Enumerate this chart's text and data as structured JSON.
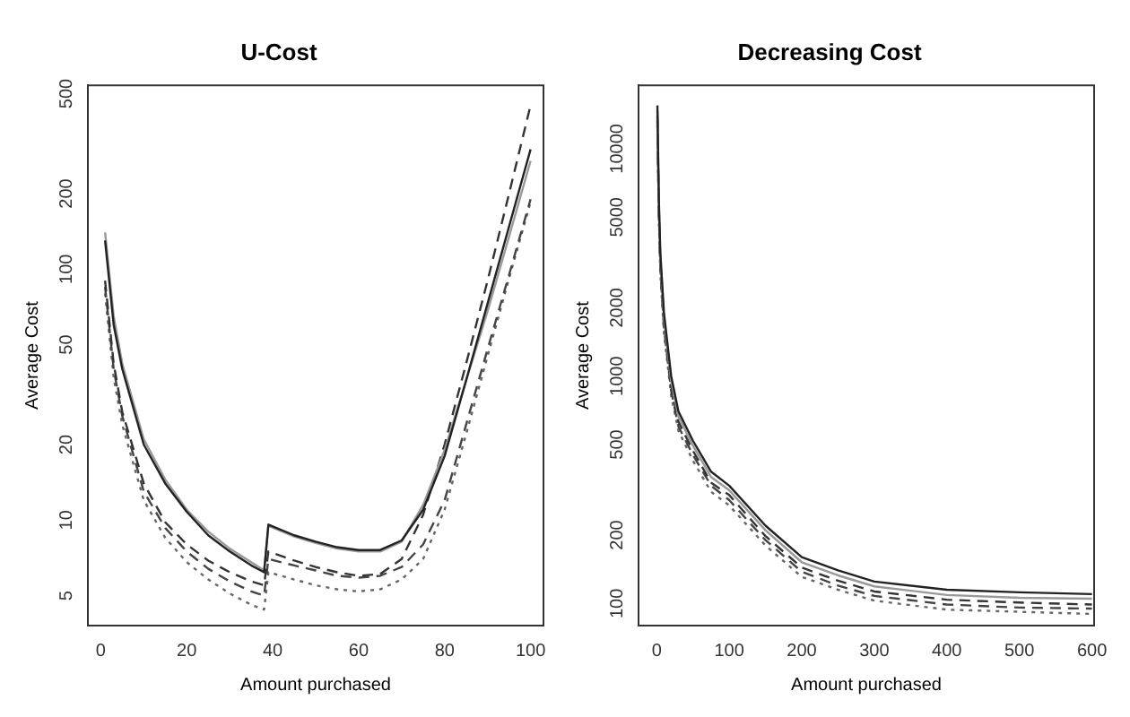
{
  "chart_data": [
    {
      "type": "line",
      "title": "U-Cost",
      "xlabel": "Amount purchased",
      "ylabel": "Average Cost",
      "log": "y",
      "grid": false,
      "legend": false,
      "marker": "none",
      "x": [
        1,
        3,
        5,
        10,
        15,
        20,
        25,
        30,
        35,
        38,
        39,
        45,
        50,
        55,
        60,
        65,
        70,
        75,
        80,
        85,
        90,
        95,
        100
      ],
      "xlim": [
        -3,
        103
      ],
      "xticks": [
        0,
        20,
        40,
        60,
        80,
        100
      ],
      "ylim": [
        3.8,
        540
      ],
      "yticks": [
        5,
        10,
        20,
        50,
        100,
        200,
        500
      ],
      "series": [
        {
          "color": "#222222",
          "line_style": "solid",
          "values": [
            130,
            60,
            40,
            20,
            14,
            10.8,
            8.7,
            7.5,
            6.6,
            6.2,
            9.6,
            8.7,
            8.2,
            7.8,
            7.6,
            7.6,
            8.3,
            11,
            18,
            36,
            73,
            148,
            300
          ]
        },
        {
          "color": "#999999",
          "line_style": "solid",
          "values": [
            140,
            65,
            42,
            21,
            14.5,
            11,
            9,
            7.7,
            6.8,
            6.3,
            9.5,
            8.6,
            8.1,
            7.7,
            7.5,
            7.5,
            8.2,
            11.5,
            19,
            36,
            68,
            135,
            270
          ]
        },
        {
          "color": "#333333",
          "line_style": "dashed",
          "values": [
            90,
            42,
            27,
            14,
            9.8,
            8,
            6.9,
            6.2,
            5.7,
            5.5,
            7.5,
            6.9,
            6.5,
            6.2,
            6,
            6.1,
            7,
            10.5,
            20,
            42,
            90,
            200,
            450
          ]
        },
        {
          "color": "#444444",
          "line_style": "dashed",
          "values": [
            85,
            40,
            26,
            13,
            9.3,
            7.5,
            6.4,
            5.7,
            5.2,
            5,
            7,
            6.6,
            6.3,
            6,
            5.9,
            6,
            6.5,
            8,
            12,
            24,
            48,
            95,
            190
          ]
        },
        {
          "color": "#666666",
          "line_style": "dotted",
          "values": [
            80,
            37,
            24,
            12,
            8.5,
            6.8,
            5.8,
            5.1,
            4.6,
            4.4,
            6.2,
            5.8,
            5.5,
            5.3,
            5.2,
            5.3,
            5.8,
            7,
            11,
            22,
            45,
            92,
            185
          ]
        }
      ]
    },
    {
      "type": "line",
      "title": "Decreasing Cost",
      "xlabel": "Amount purchased",
      "ylabel": "Average Cost",
      "log": "y",
      "grid": false,
      "legend": false,
      "marker": "none",
      "x": [
        1,
        3,
        5,
        10,
        20,
        30,
        50,
        75,
        100,
        150,
        200,
        250,
        300,
        400,
        500,
        600
      ],
      "xlim": [
        -25,
        603
      ],
      "xticks": [
        0,
        100,
        200,
        300,
        400,
        500,
        600
      ],
      "ylim": [
        80,
        19000
      ],
      "yticks": [
        100,
        200,
        500,
        1000,
        2000,
        5000,
        10000
      ],
      "series": [
        {
          "color": "#222222",
          "line_style": "solid",
          "values": [
            15500,
            6000,
            3500,
            1900,
            1000,
            700,
            520,
            380,
            330,
            220,
            160,
            140,
            125,
            115,
            112,
            110
          ]
        },
        {
          "color": "#999999",
          "line_style": "solid",
          "values": [
            14700,
            5700,
            3300,
            1800,
            950,
            665,
            495,
            360,
            315,
            210,
            152,
            133,
            119,
            109,
            106,
            105
          ]
        },
        {
          "color": "#333333",
          "line_style": "dashed",
          "values": [
            14000,
            5400,
            3150,
            1710,
            900,
            630,
            470,
            340,
            300,
            198,
            144,
            126,
            113,
            104,
            101,
            99
          ]
        },
        {
          "color": "#444444",
          "line_style": "dashed",
          "values": [
            13300,
            5200,
            3000,
            1630,
            860,
            600,
            450,
            330,
            285,
            190,
            138,
            120,
            108,
            99,
            96,
            95
          ]
        },
        {
          "color": "#666666",
          "line_style": "dotted",
          "values": [
            12700,
            4900,
            2850,
            1560,
            820,
            575,
            425,
            310,
            270,
            180,
            131,
            115,
            103,
            94,
            92,
            90
          ]
        }
      ]
    }
  ]
}
